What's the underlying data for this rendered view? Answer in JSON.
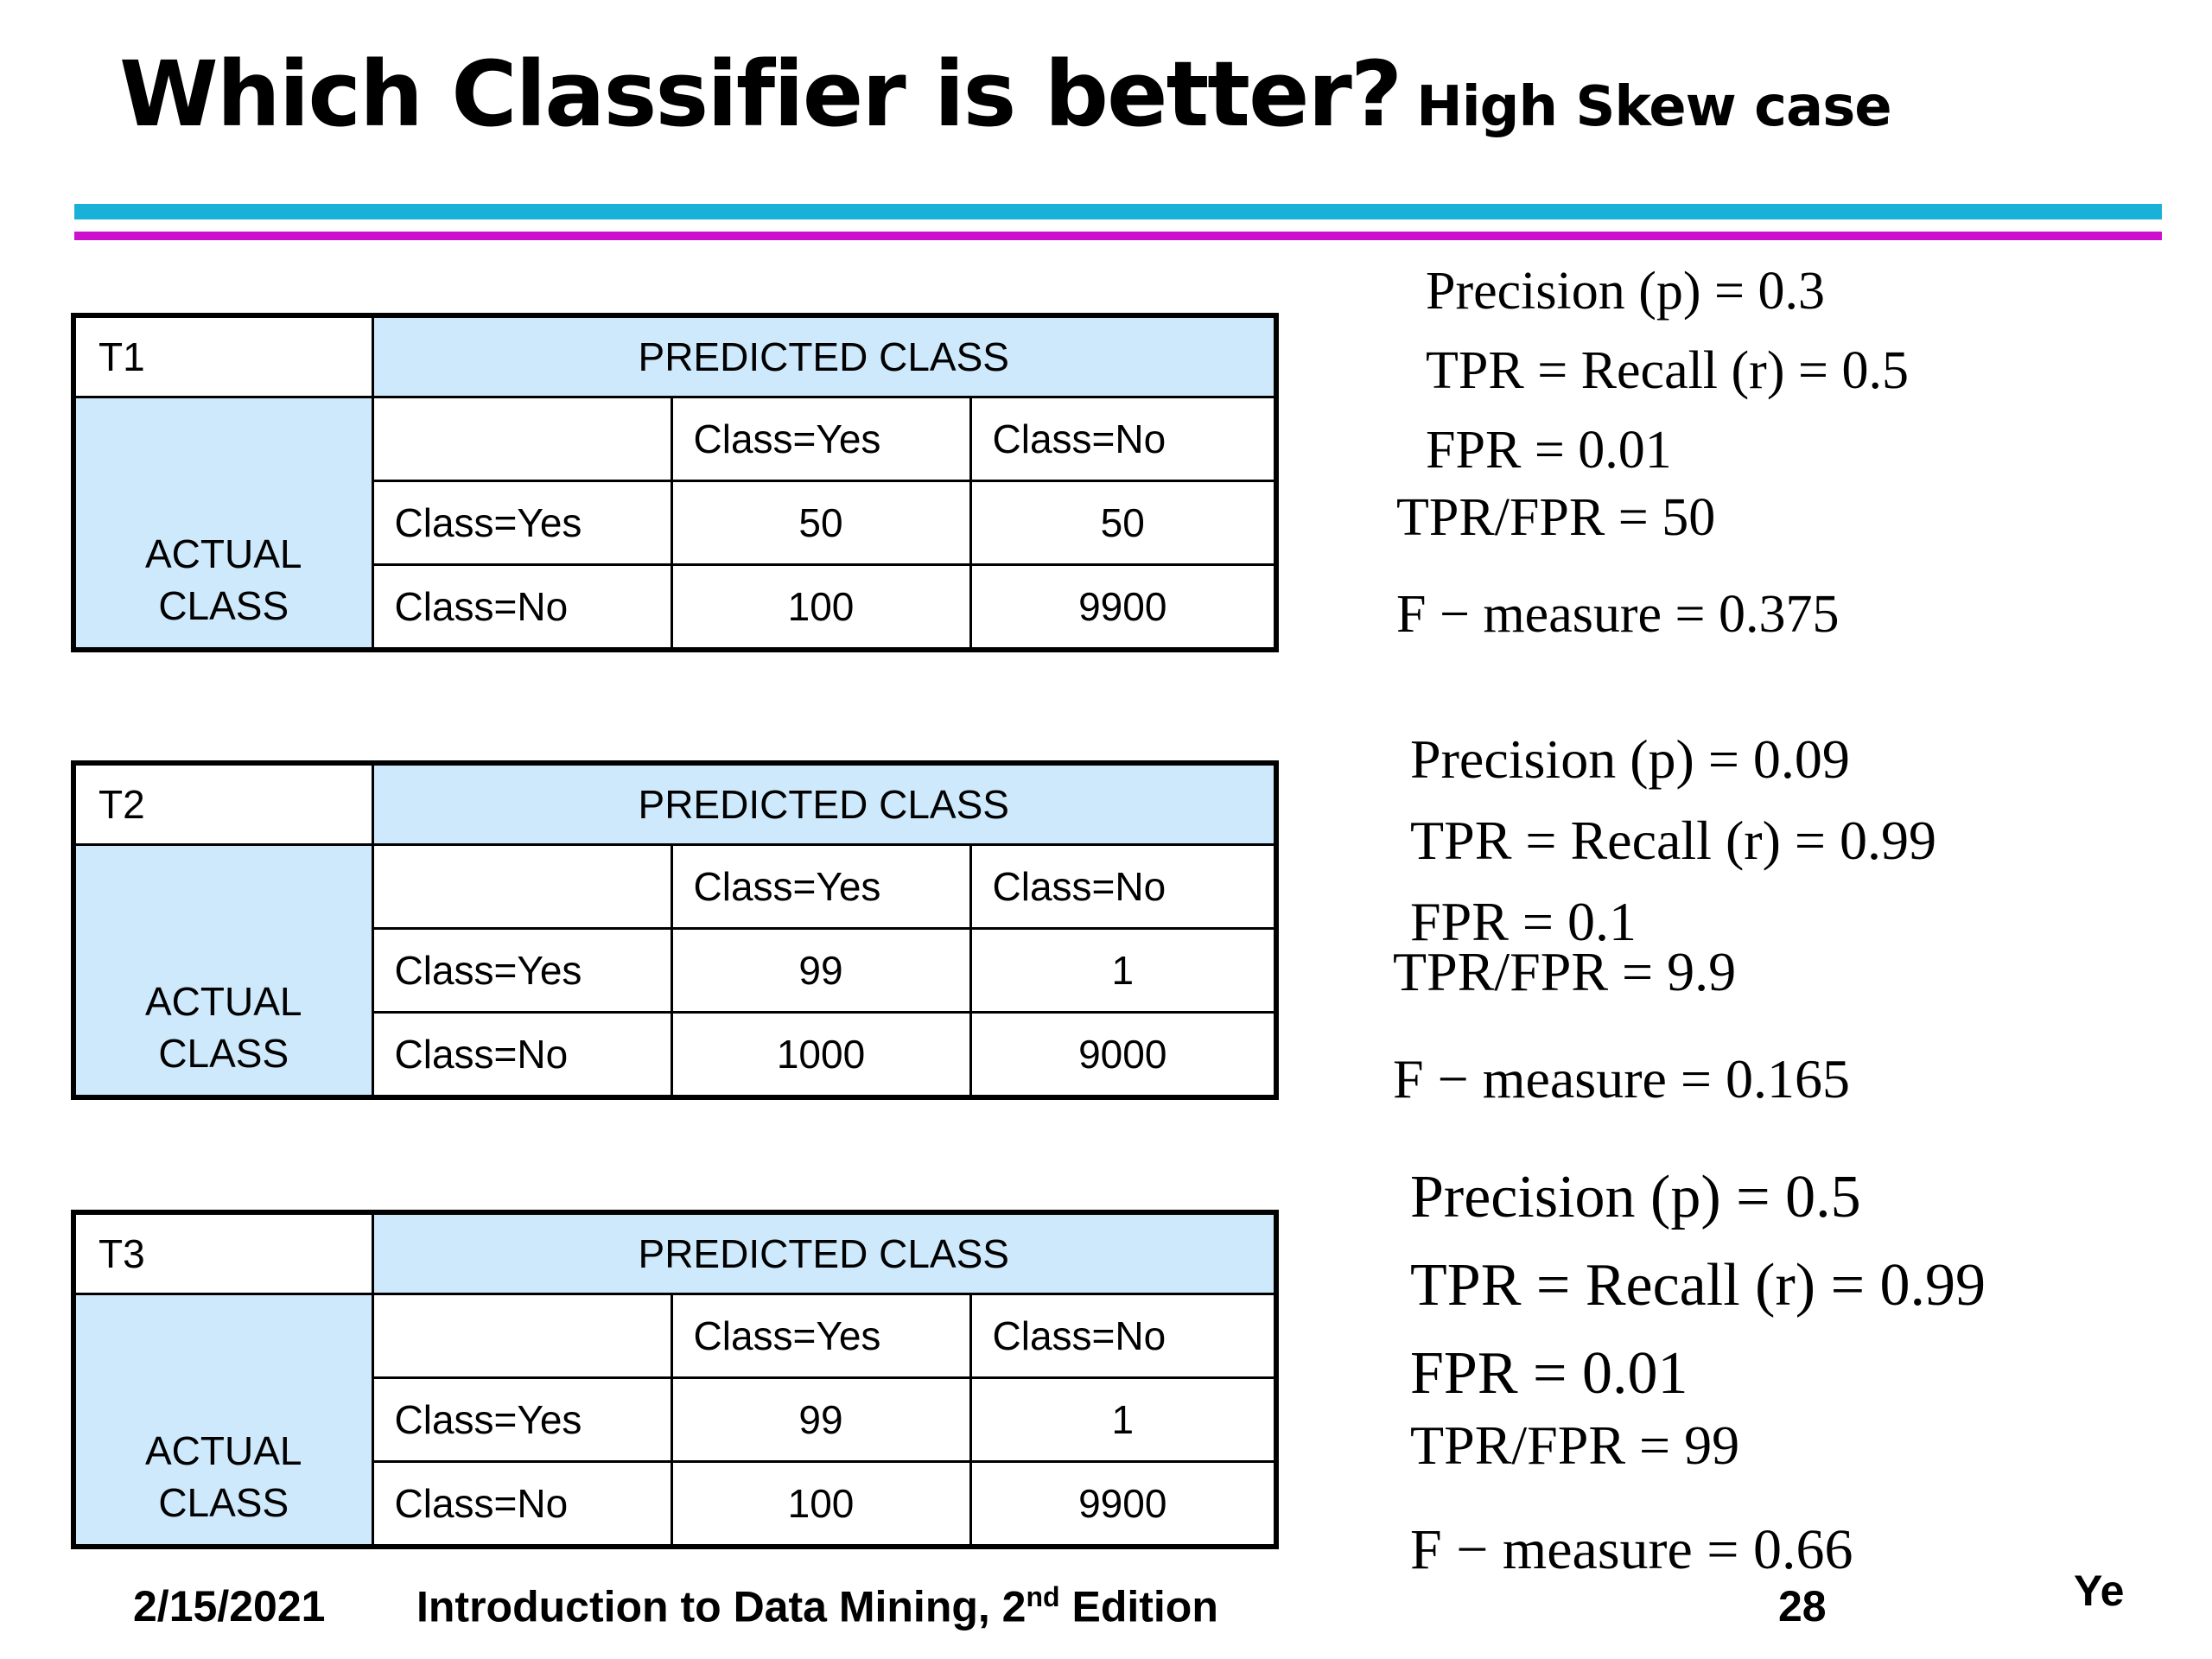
{
  "title": {
    "main": "Which Classifier is better?",
    "sub": "High Skew case"
  },
  "tables": [
    {
      "label": "T1",
      "predicted_header": "PREDICTED CLASS",
      "actual_header_line1": "ACTUAL",
      "actual_header_line2": "CLASS",
      "columns": [
        "Class=Yes",
        "Class=No"
      ],
      "rows": [
        {
          "label": "Class=Yes",
          "values": [
            "50",
            "50"
          ]
        },
        {
          "label": "Class=No",
          "values": [
            "100",
            "9900"
          ]
        }
      ]
    },
    {
      "label": "T2",
      "predicted_header": "PREDICTED CLASS",
      "actual_header_line1": "ACTUAL",
      "actual_header_line2": "CLASS",
      "columns": [
        "Class=Yes",
        "Class=No"
      ],
      "rows": [
        {
          "label": "Class=Yes",
          "values": [
            "99",
            "1"
          ]
        },
        {
          "label": "Class=No",
          "values": [
            "1000",
            "9000"
          ]
        }
      ]
    },
    {
      "label": "T3",
      "predicted_header": "PREDICTED CLASS",
      "actual_header_line1": "ACTUAL",
      "actual_header_line2": "CLASS",
      "columns": [
        "Class=Yes",
        "Class=No"
      ],
      "rows": [
        {
          "label": "Class=Yes",
          "values": [
            "99",
            "1"
          ]
        },
        {
          "label": "Class=No",
          "values": [
            "100",
            "9900"
          ]
        }
      ]
    }
  ],
  "metrics": [
    {
      "precision": "Precision (p) = 0.3",
      "recall": "TPR = Recall (r) = 0.5",
      "fpr": "FPR = 0.01",
      "ratio": "TPR/FPR = 50",
      "fmeasure": "F − measure = 0.375"
    },
    {
      "precision": "Precision (p) = 0.09",
      "recall": "TPR = Recall (r) = 0.99",
      "fpr": "FPR = 0.1",
      "ratio": "TPR/FPR = 9.9",
      "fmeasure": "F − measure = 0.165"
    },
    {
      "precision": "Precision (p) = 0.5",
      "recall": "TPR = Recall (r) = 0.99",
      "fpr": "FPR = 0.01",
      "ratio": "TPR/FPR = 99",
      "fmeasure": "F − measure = 0.66"
    }
  ],
  "footer": {
    "date": "2/15/2021",
    "book_prefix": "Introduction to Data Mining, 2",
    "book_sup": "nd",
    "book_suffix": " Edition",
    "page": "28",
    "author": "Ye"
  },
  "colors": {
    "header_fill": "#cde9fb",
    "rule_cyan": "#1ab1d8",
    "rule_magenta": "#cc10cc"
  }
}
